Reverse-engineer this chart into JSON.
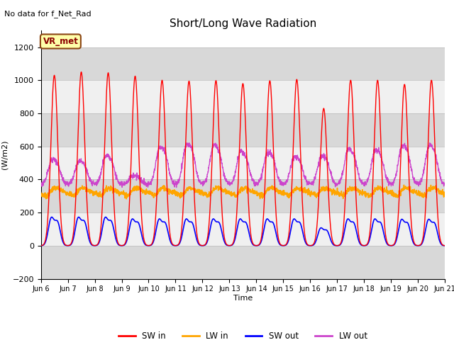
{
  "title": "Short/Long Wave Radiation",
  "xlabel": "Time",
  "ylabel": "(W/m2)",
  "ylim": [
    -200,
    1300
  ],
  "yticks": [
    -200,
    0,
    200,
    400,
    600,
    800,
    1000,
    1200
  ],
  "annotation_text": "No data for f_Net_Rad",
  "legend_box_label": "VR_met",
  "x_tick_labels": [
    "Jun 6",
    "Jun 7",
    "Jun 8",
    "Jun 9",
    "Jun 10",
    "Jun 11",
    "Jun 12",
    "Jun 13",
    "Jun 14",
    "Jun 15",
    "Jun 16",
    "Jun 17",
    "Jun 18",
    "Jun 19",
    "Jun 20",
    "Jun 21"
  ],
  "colors": {
    "SW_in": "#ff0000",
    "LW_in": "#ffa500",
    "SW_out": "#0000ff",
    "LW_out": "#cc44cc"
  },
  "legend_labels": [
    "SW in",
    "LW in",
    "SW out",
    "LW out"
  ],
  "grid_color": "#bbbbbb",
  "plot_bg": "#ffffff",
  "fig_bg": "#ffffff",
  "band_colors": [
    "#d8d8d8",
    "#f0f0f0"
  ],
  "n_days": 15,
  "peak_SW_in": [
    1030,
    1050,
    1045,
    1025,
    1000,
    995,
    998,
    980,
    997,
    1005,
    830,
    1000,
    1000,
    975,
    1000
  ],
  "peak_SW_out": [
    160,
    160,
    160,
    150,
    150,
    150,
    150,
    150,
    150,
    150,
    100,
    150,
    150,
    148,
    148
  ],
  "base_LW_in": 300,
  "base_LW_out": 370
}
